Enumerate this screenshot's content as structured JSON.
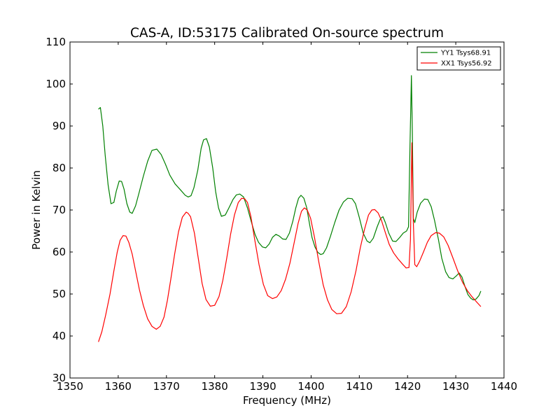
{
  "chart_data": {
    "type": "line",
    "title": "CAS-A, ID:53175 Calibrated On-source spectrum",
    "xlabel": "Frequency (MHz)",
    "ylabel": "Power in Kelvin",
    "xlim": [
      1350,
      1440
    ],
    "ylim": [
      30,
      110
    ],
    "xticks": [
      "1350",
      "1360",
      "1370",
      "1380",
      "1390",
      "1400",
      "1410",
      "1420",
      "1430",
      "1440"
    ],
    "yticks": [
      "30",
      "40",
      "50",
      "60",
      "70",
      "80",
      "90",
      "100",
      "110"
    ],
    "grid": false,
    "legend_position": "top-right",
    "series": [
      {
        "name": "YY1 Tsys68.91",
        "color": "#008000",
        "x": [
          1355.9,
          1356.3,
          1356.8,
          1357.3,
          1357.9,
          1358.5,
          1359.1,
          1359.6,
          1360.2,
          1360.7,
          1361.2,
          1361.8,
          1362.4,
          1362.9,
          1363.6,
          1364.3,
          1365.2,
          1366.1,
          1367.0,
          1368.0,
          1368.9,
          1369.8,
          1370.7,
          1371.8,
          1372.9,
          1373.9,
          1374.5,
          1375.1,
          1375.7,
          1376.5,
          1377.2,
          1377.7,
          1378.3,
          1378.9,
          1379.6,
          1380.2,
          1380.8,
          1381.4,
          1382.2,
          1383.0,
          1383.8,
          1384.5,
          1385.2,
          1386.0,
          1386.8,
          1387.6,
          1388.4,
          1389.1,
          1389.9,
          1390.6,
          1391.3,
          1392.0,
          1392.7,
          1393.4,
          1394.1,
          1394.8,
          1395.5,
          1396.2,
          1396.8,
          1397.4,
          1397.9,
          1398.5,
          1399.1,
          1399.7,
          1400.2,
          1400.8,
          1401.4,
          1402.0,
          1402.5,
          1403.2,
          1404.0,
          1404.9,
          1405.8,
          1406.7,
          1407.6,
          1408.5,
          1409.2,
          1410.0,
          1410.8,
          1411.6,
          1412.2,
          1412.9,
          1413.7,
          1414.4,
          1414.9,
          1415.4,
          1416.1,
          1416.9,
          1417.6,
          1418.4,
          1419.1,
          1419.8,
          1420.2,
          1420.5,
          1420.8,
          1421.0,
          1421.2,
          1421.5,
          1422.0,
          1422.7,
          1423.5,
          1424.2,
          1424.9,
          1425.6,
          1426.4,
          1427.1,
          1427.9,
          1428.6,
          1429.4,
          1430.1,
          1430.7,
          1431.3,
          1431.9,
          1432.5,
          1433.1,
          1433.6,
          1434.2,
          1434.8,
          1435.2
        ],
        "values": [
          94.0,
          94.4,
          90.0,
          83.0,
          76.0,
          71.5,
          71.8,
          74.5,
          76.9,
          76.8,
          75.0,
          71.5,
          69.5,
          69.2,
          71.0,
          74.0,
          78.0,
          81.6,
          84.2,
          84.5,
          83.2,
          80.9,
          78.3,
          76.2,
          74.8,
          73.5,
          73.1,
          73.4,
          75.3,
          79.5,
          84.7,
          86.7,
          87.0,
          85.0,
          80.0,
          74.4,
          70.5,
          68.5,
          68.8,
          70.6,
          72.5,
          73.6,
          73.8,
          73.1,
          70.5,
          67.2,
          64.1,
          62.3,
          61.2,
          61.0,
          61.9,
          63.5,
          64.2,
          63.8,
          63.1,
          63.0,
          64.5,
          67.3,
          70.4,
          72.8,
          73.5,
          72.8,
          70.5,
          66.5,
          63.4,
          61.2,
          59.9,
          59.4,
          59.6,
          61.0,
          63.7,
          67.0,
          70.0,
          71.9,
          72.8,
          72.7,
          71.5,
          68.2,
          64.5,
          62.6,
          62.2,
          63.3,
          66.0,
          68.0,
          68.4,
          67.0,
          64.5,
          62.6,
          62.5,
          63.5,
          64.5,
          65.0,
          66.0,
          85.0,
          102.0,
          88.0,
          68.0,
          67.0,
          69.5,
          71.6,
          72.6,
          72.5,
          70.8,
          67.5,
          63.0,
          58.5,
          55.3,
          53.9,
          53.6,
          54.3,
          55.0,
          54.0,
          51.8,
          49.9,
          49.0,
          48.6,
          48.8,
          49.6,
          50.7
        ]
      },
      {
        "name": "XX1 Tsys56.92",
        "color": "#ff0000",
        "x": [
          1355.9,
          1356.6,
          1357.4,
          1358.3,
          1359.1,
          1359.8,
          1360.4,
          1361.0,
          1361.6,
          1362.2,
          1362.9,
          1363.6,
          1364.4,
          1365.2,
          1366.1,
          1367.0,
          1367.9,
          1368.7,
          1369.5,
          1370.2,
          1370.9,
          1371.7,
          1372.5,
          1373.3,
          1374.1,
          1374.5,
          1375.0,
          1375.8,
          1376.6,
          1377.4,
          1378.2,
          1379.1,
          1380.0,
          1380.9,
          1381.7,
          1382.5,
          1383.3,
          1384.1,
          1384.9,
          1385.6,
          1386.2,
          1386.8,
          1387.5,
          1388.3,
          1389.2,
          1390.1,
          1391.0,
          1392.0,
          1392.9,
          1393.8,
          1394.7,
          1395.6,
          1396.5,
          1397.3,
          1398.0,
          1398.6,
          1399.2,
          1399.9,
          1400.7,
          1401.6,
          1402.5,
          1403.4,
          1404.3,
          1405.3,
          1406.3,
          1407.3,
          1408.3,
          1409.3,
          1410.2,
          1411.1,
          1411.9,
          1412.6,
          1413.2,
          1413.9,
          1414.6,
          1415.4,
          1416.2,
          1417.1,
          1418.0,
          1418.9,
          1419.7,
          1420.3,
          1420.6,
          1420.9,
          1421.2,
          1421.5,
          1421.9,
          1422.5,
          1423.3,
          1424.1,
          1424.9,
          1425.8,
          1426.6,
          1427.5,
          1428.4,
          1429.4,
          1430.4,
          1431.4,
          1432.4,
          1433.4,
          1434.4,
          1435.2
        ],
        "values": [
          38.6,
          41.0,
          45.0,
          50.0,
          55.5,
          60.0,
          62.8,
          63.9,
          63.8,
          62.3,
          59.5,
          55.5,
          51.0,
          47.3,
          44.1,
          42.3,
          41.6,
          42.3,
          44.5,
          48.5,
          53.5,
          59.5,
          64.8,
          68.3,
          69.5,
          69.2,
          68.4,
          64.5,
          58.5,
          52.5,
          48.7,
          47.1,
          47.3,
          49.4,
          53.3,
          58.5,
          64.2,
          68.8,
          71.8,
          72.8,
          72.7,
          71.8,
          68.5,
          63.0,
          57.0,
          52.3,
          49.6,
          48.9,
          49.3,
          50.8,
          53.5,
          57.3,
          62.3,
          66.8,
          69.7,
          70.5,
          70.0,
          68.0,
          63.5,
          57.6,
          52.2,
          48.6,
          46.3,
          45.3,
          45.4,
          47.0,
          50.5,
          55.5,
          61.0,
          65.5,
          68.8,
          70.0,
          70.1,
          69.3,
          67.5,
          64.6,
          61.8,
          59.8,
          58.4,
          57.2,
          56.2,
          56.3,
          63.0,
          86.0,
          67.0,
          57.0,
          56.5,
          57.8,
          60.0,
          62.3,
          63.9,
          64.6,
          64.5,
          63.6,
          61.6,
          58.6,
          55.5,
          52.8,
          50.8,
          49.3,
          48.0,
          47.0
        ]
      }
    ]
  }
}
